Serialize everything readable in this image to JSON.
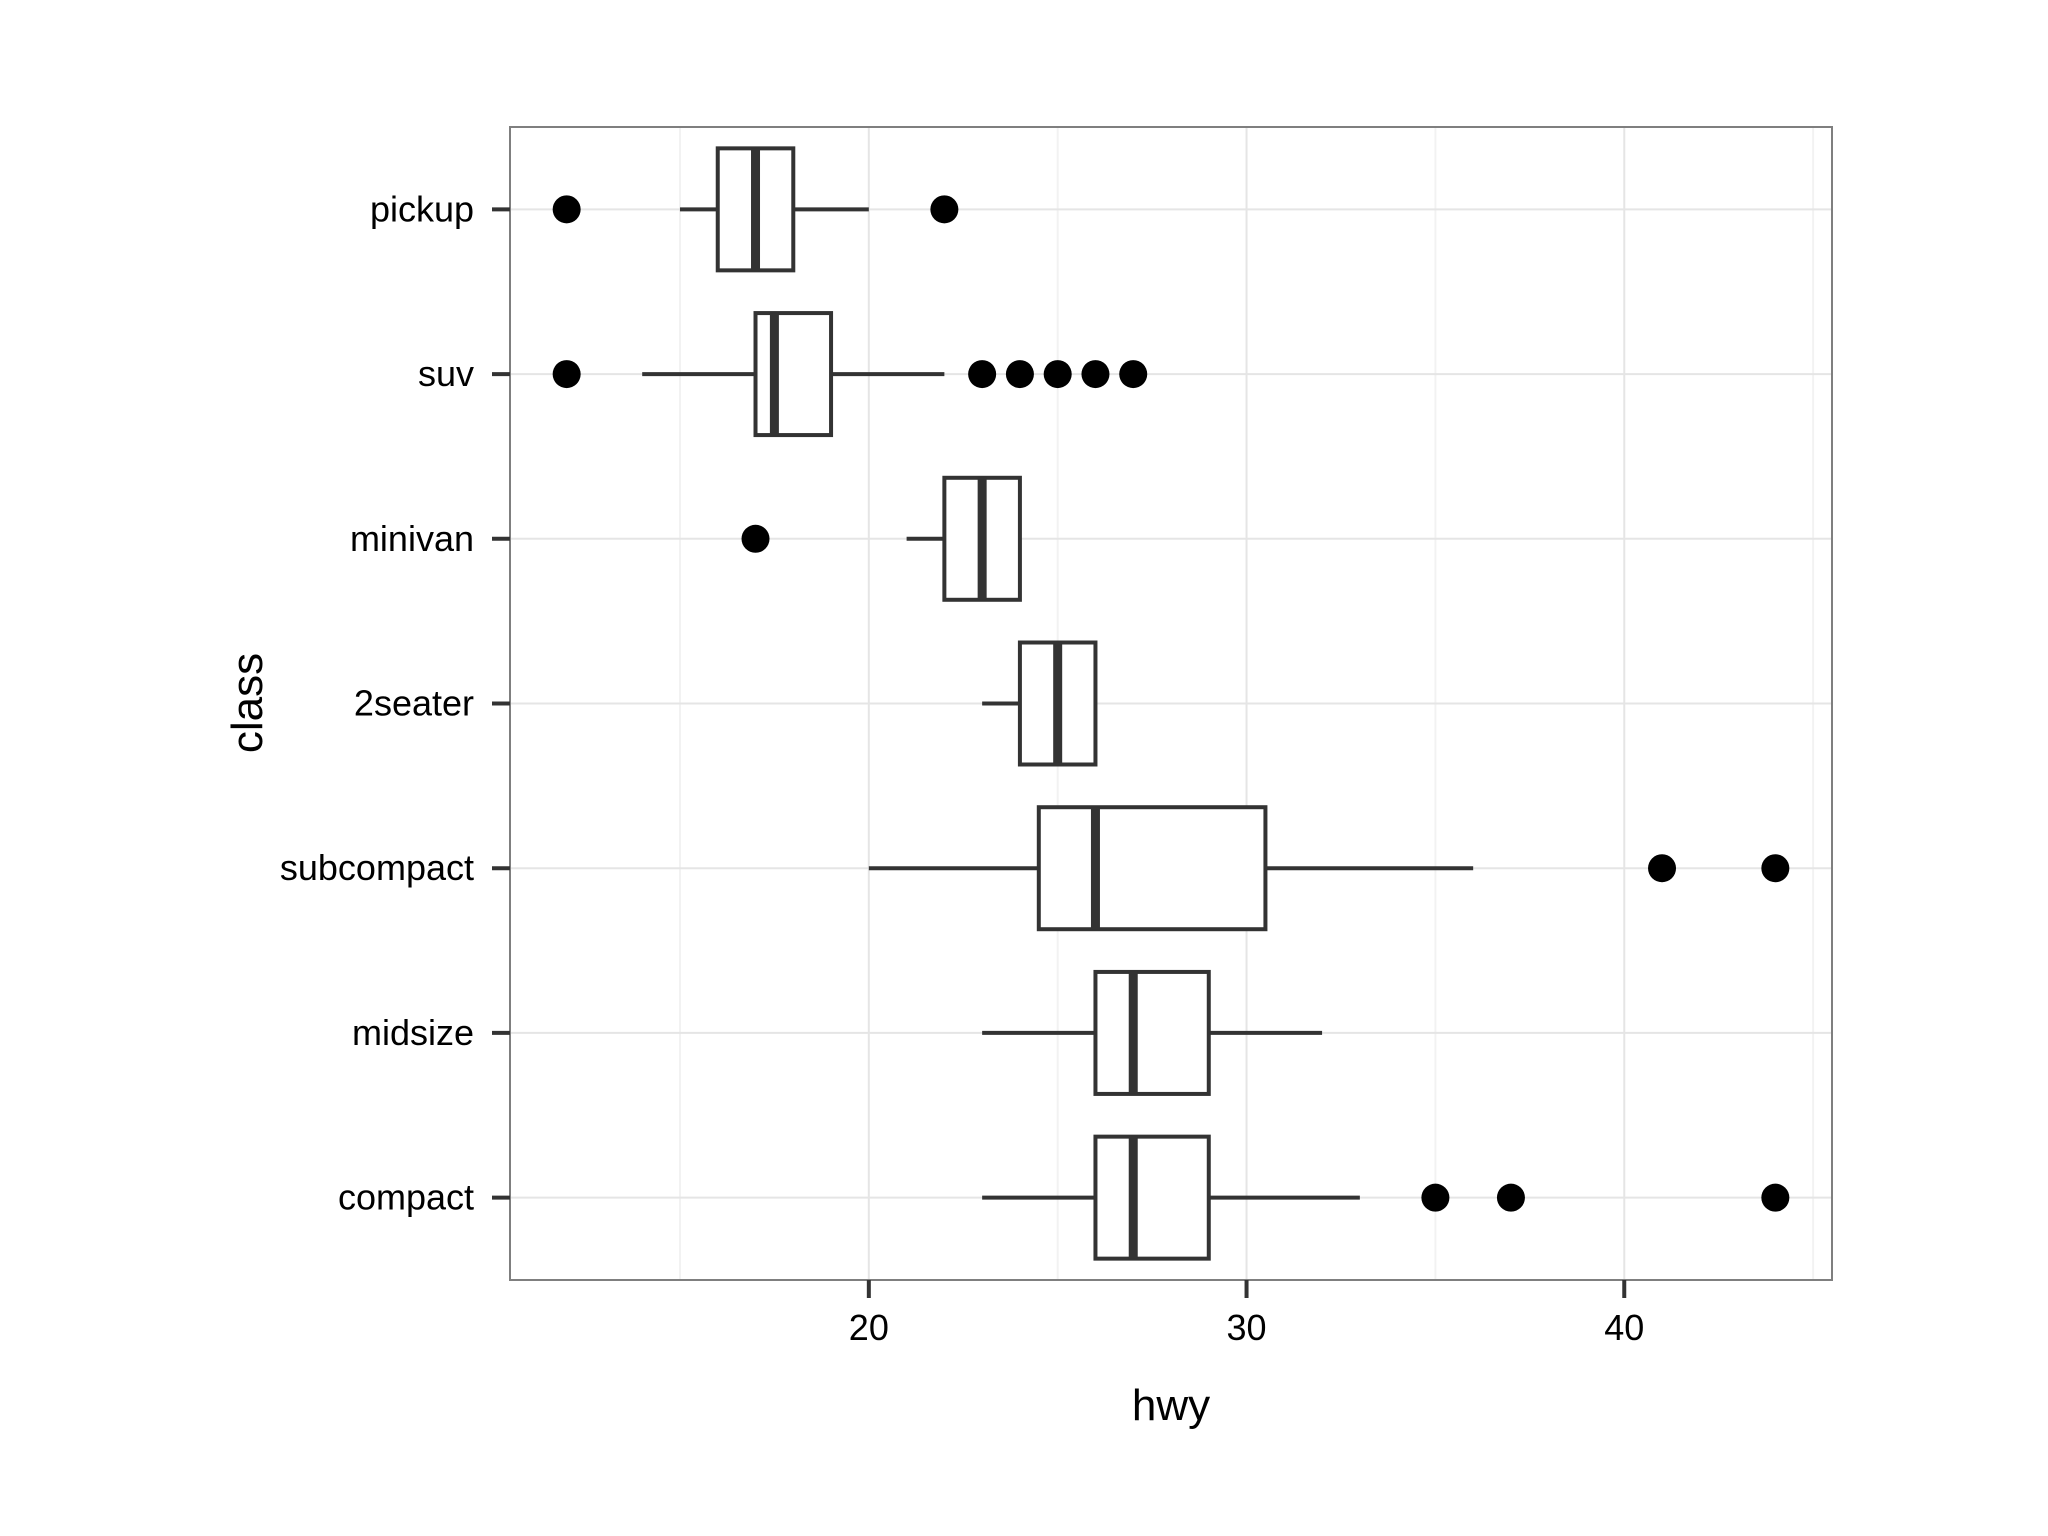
{
  "chart_data": {
    "type": "boxplot",
    "orientation": "horizontal",
    "title": "",
    "xlabel": "hwy",
    "ylabel": "class",
    "xlim": [
      10.5,
      45.5
    ],
    "x_ticks": [
      20,
      30,
      40
    ],
    "x_minor_ticks": [
      15,
      25,
      35,
      45
    ],
    "grid": true,
    "categories": [
      "compact",
      "midsize",
      "subcompact",
      "2seater",
      "minivan",
      "suv",
      "pickup"
    ],
    "boxes": [
      {
        "class": "compact",
        "whisker_low": 23,
        "q1": 26,
        "median": 27,
        "q3": 29,
        "whisker_high": 33,
        "outliers": [
          35,
          37,
          44
        ]
      },
      {
        "class": "midsize",
        "whisker_low": 23,
        "q1": 26,
        "median": 27,
        "q3": 29,
        "whisker_high": 32,
        "outliers": []
      },
      {
        "class": "subcompact",
        "whisker_low": 20,
        "q1": 24.5,
        "median": 26,
        "q3": 30.5,
        "whisker_high": 36,
        "outliers": [
          41,
          44
        ]
      },
      {
        "class": "2seater",
        "whisker_low": 23,
        "q1": 24,
        "median": 25,
        "q3": 26,
        "whisker_high": 26,
        "outliers": []
      },
      {
        "class": "minivan",
        "whisker_low": 21,
        "q1": 22,
        "median": 23,
        "q3": 24,
        "whisker_high": 24,
        "outliers": [
          17
        ]
      },
      {
        "class": "suv",
        "whisker_low": 14,
        "q1": 17,
        "median": 17.5,
        "q3": 19,
        "whisker_high": 22,
        "outliers": [
          12,
          23,
          24,
          25,
          26,
          27
        ]
      },
      {
        "class": "pickup",
        "whisker_low": 15,
        "q1": 16,
        "median": 17,
        "q3": 18,
        "whisker_high": 20,
        "outliers": [
          12,
          22
        ]
      }
    ],
    "colors": {
      "box_stroke": "#333333",
      "box_fill": "#ffffff",
      "point": "#000000",
      "panel_border": "#7f7f7f",
      "grid_major": "#e5e5e5",
      "grid_minor": "#f2f2f2",
      "axis_tick": "#333333"
    }
  }
}
